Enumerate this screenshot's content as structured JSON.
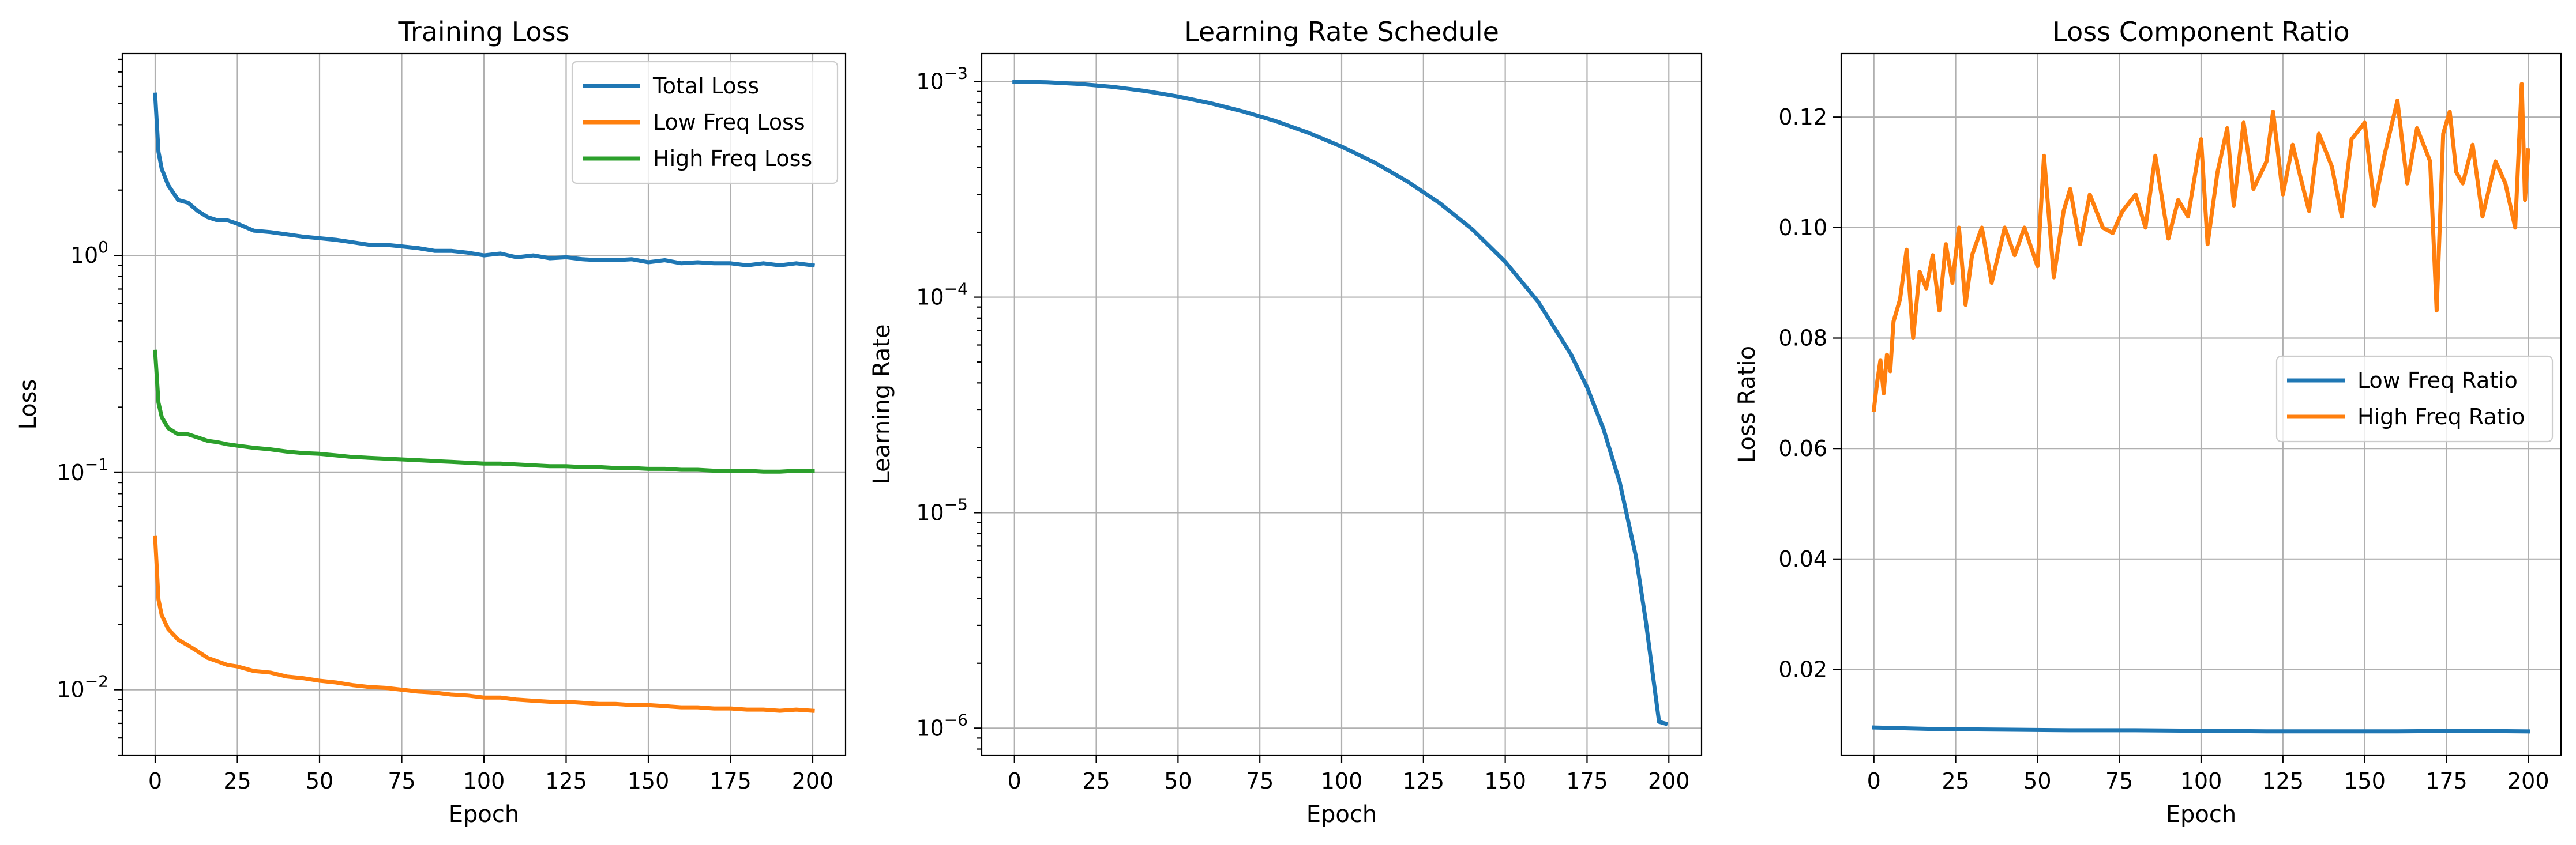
{
  "chart_data": [
    {
      "type": "line",
      "title": "Training Loss",
      "xlabel": "Epoch",
      "ylabel": "Loss",
      "yscale": "log",
      "xlim": [
        -10,
        210
      ],
      "ylim": [
        0.005,
        8.5
      ],
      "xticks": [
        0,
        25,
        50,
        75,
        100,
        125,
        150,
        175,
        200
      ],
      "yticks": [
        {
          "value": 0.01,
          "base": "10",
          "exp": "−2"
        },
        {
          "value": 0.1,
          "base": "10",
          "exp": "−1"
        },
        {
          "value": 1,
          "base": "10",
          "exp": "0"
        }
      ],
      "grid": true,
      "legend_position": "upper right",
      "series": [
        {
          "name": "Total Loss",
          "color": "#1f77b4",
          "epochs": [
            0,
            1,
            2,
            4,
            7,
            10,
            13,
            16,
            19,
            22,
            25,
            30,
            35,
            40,
            45,
            50,
            55,
            60,
            65,
            70,
            75,
            80,
            85,
            90,
            95,
            100,
            105,
            110,
            115,
            120,
            125,
            130,
            135,
            140,
            145,
            150,
            155,
            160,
            165,
            170,
            175,
            180,
            185,
            190,
            195,
            200
          ],
          "values": [
            5.5,
            3.0,
            2.5,
            2.1,
            1.8,
            1.75,
            1.6,
            1.5,
            1.45,
            1.45,
            1.4,
            1.3,
            1.28,
            1.25,
            1.22,
            1.2,
            1.18,
            1.15,
            1.12,
            1.12,
            1.1,
            1.08,
            1.05,
            1.05,
            1.03,
            1.0,
            1.02,
            0.98,
            1.0,
            0.97,
            0.98,
            0.96,
            0.95,
            0.95,
            0.96,
            0.93,
            0.95,
            0.92,
            0.93,
            0.92,
            0.92,
            0.9,
            0.92,
            0.9,
            0.92,
            0.9
          ]
        },
        {
          "name": "Low Freq Loss",
          "color": "#ff7f0e",
          "epochs": [
            0,
            1,
            2,
            4,
            7,
            10,
            13,
            16,
            19,
            22,
            25,
            30,
            35,
            40,
            45,
            50,
            55,
            60,
            65,
            70,
            75,
            80,
            85,
            90,
            95,
            100,
            105,
            110,
            115,
            120,
            125,
            130,
            135,
            140,
            145,
            150,
            155,
            160,
            165,
            170,
            175,
            180,
            185,
            190,
            195,
            200
          ],
          "values": [
            0.05,
            0.026,
            0.022,
            0.019,
            0.017,
            0.016,
            0.015,
            0.014,
            0.0135,
            0.013,
            0.0128,
            0.0122,
            0.012,
            0.0115,
            0.0113,
            0.011,
            0.0108,
            0.0105,
            0.0103,
            0.0102,
            0.01,
            0.0098,
            0.0097,
            0.0095,
            0.0094,
            0.0092,
            0.0092,
            0.009,
            0.0089,
            0.0088,
            0.0088,
            0.0087,
            0.0086,
            0.0086,
            0.0085,
            0.0085,
            0.0084,
            0.0083,
            0.0083,
            0.0082,
            0.0082,
            0.0081,
            0.0081,
            0.008,
            0.0081,
            0.008
          ]
        },
        {
          "name": "High Freq Loss",
          "color": "#2ca02c",
          "epochs": [
            0,
            1,
            2,
            4,
            7,
            10,
            13,
            16,
            19,
            22,
            25,
            30,
            35,
            40,
            45,
            50,
            55,
            60,
            65,
            70,
            75,
            80,
            85,
            90,
            95,
            100,
            105,
            110,
            115,
            120,
            125,
            130,
            135,
            140,
            145,
            150,
            155,
            160,
            165,
            170,
            175,
            180,
            185,
            190,
            195,
            200
          ],
          "values": [
            0.36,
            0.21,
            0.18,
            0.16,
            0.15,
            0.15,
            0.145,
            0.14,
            0.138,
            0.135,
            0.133,
            0.13,
            0.128,
            0.125,
            0.123,
            0.122,
            0.12,
            0.118,
            0.117,
            0.116,
            0.115,
            0.114,
            0.113,
            0.112,
            0.111,
            0.11,
            0.11,
            0.109,
            0.108,
            0.107,
            0.107,
            0.106,
            0.106,
            0.105,
            0.105,
            0.104,
            0.104,
            0.103,
            0.103,
            0.102,
            0.102,
            0.102,
            0.101,
            0.101,
            0.102,
            0.102
          ]
        }
      ]
    },
    {
      "type": "line",
      "title": "Learning Rate Schedule",
      "xlabel": "Epoch",
      "ylabel": "Learning Rate",
      "yscale": "log",
      "xlim": [
        -10,
        210
      ],
      "ylim": [
        7.5e-07,
        0.00135
      ],
      "xticks": [
        0,
        25,
        50,
        75,
        100,
        125,
        150,
        175,
        200
      ],
      "yticks": [
        {
          "value": 1e-06,
          "base": "10",
          "exp": "−6"
        },
        {
          "value": 1e-05,
          "base": "10",
          "exp": "−5"
        },
        {
          "value": 0.0001,
          "base": "10",
          "exp": "−4"
        },
        {
          "value": 0.001,
          "base": "10",
          "exp": "−3"
        }
      ],
      "grid": true,
      "series": [
        {
          "color": "#1f77b4",
          "epochs": [
            0,
            10,
            20,
            30,
            40,
            50,
            60,
            70,
            80,
            90,
            100,
            110,
            120,
            130,
            140,
            150,
            160,
            170,
            175,
            180,
            185,
            190,
            193,
            195,
            197,
            199
          ],
          "values": [
            0.001,
            0.000994,
            0.000976,
            0.000946,
            0.000905,
            0.000854,
            0.000794,
            0.000727,
            0.000655,
            0.000578,
            0.0005,
            0.000422,
            0.000345,
            0.000273,
            0.000206,
            0.000146,
            9.55e-05,
            5.45e-05,
            3.82e-05,
            2.45e-05,
            1.38e-05,
            6.2e-06,
            3.1e-06,
            1.82e-06,
            1.07e-06,
            1.05e-06
          ]
        }
      ]
    },
    {
      "type": "line",
      "title": "Loss Component Ratio",
      "xlabel": "Epoch",
      "ylabel": "Loss Ratio",
      "yscale": "linear",
      "xlim": [
        -10,
        210
      ],
      "ylim": [
        0.0045,
        0.1315
      ],
      "xticks": [
        0,
        25,
        50,
        75,
        100,
        125,
        150,
        175,
        200
      ],
      "yticks": [
        {
          "value": 0.02,
          "label": "0.02"
        },
        {
          "value": 0.04,
          "label": "0.04"
        },
        {
          "value": 0.06,
          "label": "0.06"
        },
        {
          "value": 0.08,
          "label": "0.08"
        },
        {
          "value": 0.1,
          "label": "0.10"
        },
        {
          "value": 0.12,
          "label": "0.12"
        }
      ],
      "grid": true,
      "legend_position": "center right",
      "series": [
        {
          "name": "Low Freq Ratio",
          "color": "#1f77b4",
          "epochs": [
            0,
            20,
            40,
            60,
            80,
            100,
            120,
            140,
            160,
            180,
            200
          ],
          "values": [
            0.0095,
            0.0092,
            0.0091,
            0.009,
            0.009,
            0.0089,
            0.0088,
            0.0088,
            0.0088,
            0.0089,
            0.0088
          ]
        },
        {
          "name": "High Freq Ratio",
          "color": "#ff7f0e",
          "epochs": [
            0,
            1,
            2,
            3,
            4,
            5,
            6,
            8,
            10,
            12,
            14,
            16,
            18,
            20,
            22,
            24,
            26,
            28,
            30,
            33,
            36,
            40,
            43,
            46,
            50,
            52,
            55,
            58,
            60,
            63,
            66,
            70,
            73,
            76,
            80,
            83,
            86,
            90,
            93,
            96,
            100,
            102,
            105,
            108,
            110,
            113,
            116,
            120,
            122,
            125,
            128,
            130,
            133,
            136,
            140,
            143,
            146,
            150,
            153,
            156,
            160,
            163,
            166,
            170,
            172,
            174,
            176,
            178,
            180,
            183,
            186,
            190,
            193,
            196,
            198,
            199,
            200
          ],
          "values": [
            0.067,
            0.072,
            0.076,
            0.07,
            0.077,
            0.074,
            0.083,
            0.087,
            0.096,
            0.08,
            0.092,
            0.089,
            0.095,
            0.085,
            0.097,
            0.09,
            0.1,
            0.086,
            0.095,
            0.1,
            0.09,
            0.1,
            0.095,
            0.1,
            0.093,
            0.113,
            0.091,
            0.103,
            0.107,
            0.097,
            0.106,
            0.1,
            0.099,
            0.103,
            0.106,
            0.1,
            0.113,
            0.098,
            0.105,
            0.102,
            0.116,
            0.097,
            0.11,
            0.118,
            0.104,
            0.119,
            0.107,
            0.112,
            0.121,
            0.106,
            0.115,
            0.11,
            0.103,
            0.117,
            0.111,
            0.102,
            0.116,
            0.119,
            0.104,
            0.113,
            0.123,
            0.108,
            0.118,
            0.112,
            0.085,
            0.117,
            0.121,
            0.11,
            0.108,
            0.115,
            0.102,
            0.112,
            0.108,
            0.1,
            0.126,
            0.105,
            0.114
          ]
        }
      ]
    }
  ]
}
